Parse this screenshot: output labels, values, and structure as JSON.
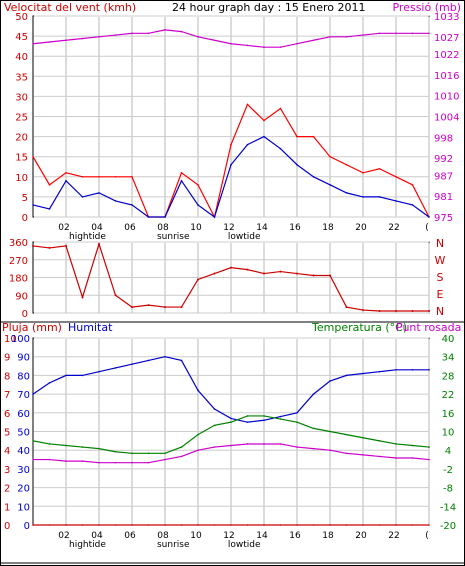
{
  "header": {
    "wind_label": "Velocitat del vent (kmh)",
    "title": "24 hour graph day : 15 Enero 2011",
    "pressure_label": "Pressió (mb)"
  },
  "hour_ticks": [
    "02",
    "04",
    "06",
    "08",
    "10",
    "12",
    "14",
    "16",
    "18",
    "20",
    "22",
    "("
  ],
  "events": [
    "hightide",
    "sunrise",
    "lowtide"
  ],
  "bottom": {
    "rain_label": "Pluja (mm)",
    "humidity_label": "Humitat",
    "temp_label": "Temperatura (°C)",
    "dew_label": "Punt rosada"
  },
  "colors": {
    "wind_axis": "#cc0000",
    "gust": "#ff0000",
    "wind_avg": "#0000cc",
    "wind_green": "#008000",
    "pressure": "#cc00cc",
    "direction": "#cc0000",
    "humidity": "#0000cc",
    "temperature": "#008000",
    "dew": "#cc00cc",
    "rain": "#cc0000"
  },
  "chart_data": [
    {
      "type": "line",
      "x_hours": [
        0,
        1,
        2,
        3,
        4,
        5,
        6,
        7,
        8,
        9,
        10,
        11,
        12,
        13,
        14,
        15,
        16,
        17,
        18,
        19,
        20,
        21,
        22,
        23,
        24
      ],
      "ylim_wind": [
        0,
        50
      ],
      "ylim_pressure": [
        975,
        1033
      ],
      "wind_ticks": [
        0,
        5,
        10,
        15,
        20,
        25,
        30,
        35,
        40,
        45,
        50
      ],
      "pressure_ticks": [
        975,
        981,
        987,
        992,
        998,
        1004,
        1010,
        1016,
        1022,
        1027,
        1033
      ],
      "series": [
        {
          "name": "gust",
          "values": [
            15,
            8,
            11,
            10,
            10,
            10,
            10,
            0,
            0,
            11,
            8,
            0,
            18,
            28,
            24,
            27,
            20,
            20,
            15,
            13,
            11,
            12,
            10,
            8,
            0
          ]
        },
        {
          "name": "wind_avg",
          "values": [
            3,
            2,
            9,
            5,
            6,
            4,
            3,
            0,
            0,
            9,
            3,
            0,
            13,
            18,
            20,
            17,
            13,
            10,
            8,
            6,
            5,
            5,
            4,
            3,
            0
          ]
        },
        {
          "name": "pressure",
          "values": [
            1025,
            1025.5,
            1026,
            1026.5,
            1027,
            1027.5,
            1028,
            1028,
            1029,
            1028.5,
            1027,
            1026,
            1025,
            1024.5,
            1024,
            1024,
            1025,
            1026,
            1027,
            1027,
            1027.5,
            1028,
            1028,
            1028,
            1028
          ]
        }
      ]
    },
    {
      "type": "line",
      "direction_ticks": [
        "360",
        "270",
        "180",
        "90",
        "0"
      ],
      "compass": [
        "N",
        "W",
        "S",
        "E",
        "N"
      ],
      "ylim": [
        0,
        360
      ],
      "x_hours": [
        0,
        1,
        2,
        3,
        4,
        5,
        6,
        7,
        8,
        9,
        10,
        11,
        12,
        13,
        14,
        15,
        16,
        17,
        18,
        19,
        20,
        21,
        22,
        23,
        24
      ],
      "values": [
        340,
        330,
        340,
        80,
        350,
        90,
        30,
        40,
        30,
        30,
        170,
        200,
        230,
        220,
        200,
        210,
        200,
        190,
        190,
        30,
        15,
        10,
        10,
        10,
        10
      ]
    },
    {
      "type": "line",
      "ylim_rain": [
        0,
        10
      ],
      "ylim_humidity": [
        0,
        100
      ],
      "ylim_temp": [
        -20,
        40
      ],
      "rain_ticks": [
        0,
        1,
        2,
        3,
        4,
        5,
        6,
        7,
        8,
        9,
        10
      ],
      "humidity_ticks": [
        0,
        10,
        20,
        30,
        40,
        50,
        60,
        70,
        80,
        90,
        100
      ],
      "temp_ticks": [
        -20,
        -14,
        -8,
        -2,
        4,
        10,
        16,
        22,
        28,
        34,
        40
      ],
      "x_hours": [
        0,
        1,
        2,
        3,
        4,
        5,
        6,
        7,
        8,
        9,
        10,
        11,
        12,
        13,
        14,
        15,
        16,
        17,
        18,
        19,
        20,
        21,
        22,
        23,
        24
      ],
      "series": [
        {
          "name": "Humitat",
          "values": [
            70,
            76,
            80,
            80,
            82,
            84,
            86,
            88,
            90,
            88,
            72,
            62,
            57,
            55,
            56,
            58,
            60,
            70,
            77,
            80,
            81,
            82,
            83,
            83,
            83
          ]
        },
        {
          "name": "Temperatura",
          "values": [
            7,
            6,
            5.5,
            5,
            4.5,
            3.5,
            3,
            3,
            3,
            5,
            9,
            12,
            13,
            15,
            15,
            14,
            13,
            11,
            10,
            9,
            8,
            7,
            6,
            5.5,
            5
          ]
        },
        {
          "name": "Punt rosada",
          "values": [
            1,
            1,
            0.5,
            0.5,
            0,
            0,
            0,
            0,
            1,
            2,
            4,
            5,
            5.5,
            6,
            6,
            6,
            5,
            4.5,
            4,
            3,
            2.5,
            2,
            1.5,
            1.5,
            1
          ]
        },
        {
          "name": "Pluja",
          "values": [
            0,
            0,
            0,
            0,
            0,
            0,
            0,
            0,
            0,
            0,
            0,
            0,
            0,
            0,
            0,
            0,
            0,
            0,
            0,
            0,
            0,
            0,
            0,
            0,
            0
          ]
        }
      ]
    }
  ]
}
